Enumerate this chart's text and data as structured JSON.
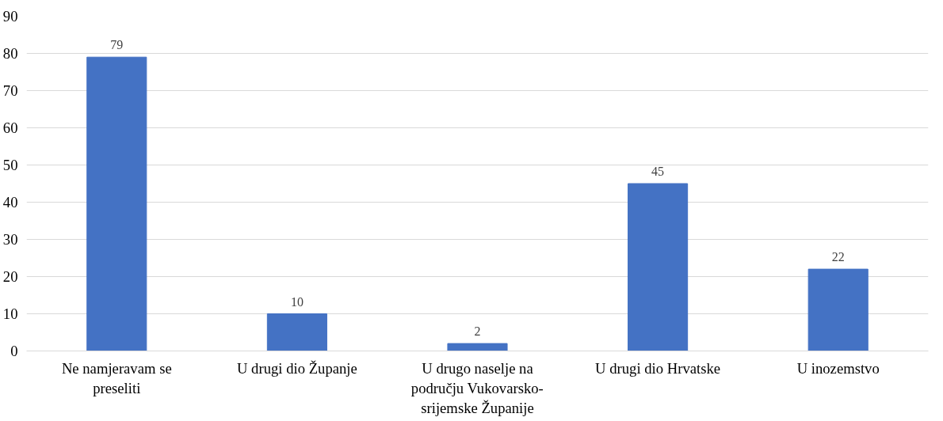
{
  "chart_data": {
    "type": "bar",
    "categories": [
      "Ne namjeravam se preseliti",
      "U drugi dio Županje",
      "U drugo naselje na području Vukovarsko-srijemske Županije",
      "U drugi dio Hrvatske",
      "U inozemstvo"
    ],
    "values": [
      79,
      10,
      2,
      45,
      22
    ],
    "color": "#4472c4",
    "ylim": [
      0,
      90
    ],
    "yticks": [
      0,
      10,
      20,
      30,
      40,
      50,
      60,
      70,
      80,
      90
    ],
    "grid": "y",
    "data_labels": true
  }
}
